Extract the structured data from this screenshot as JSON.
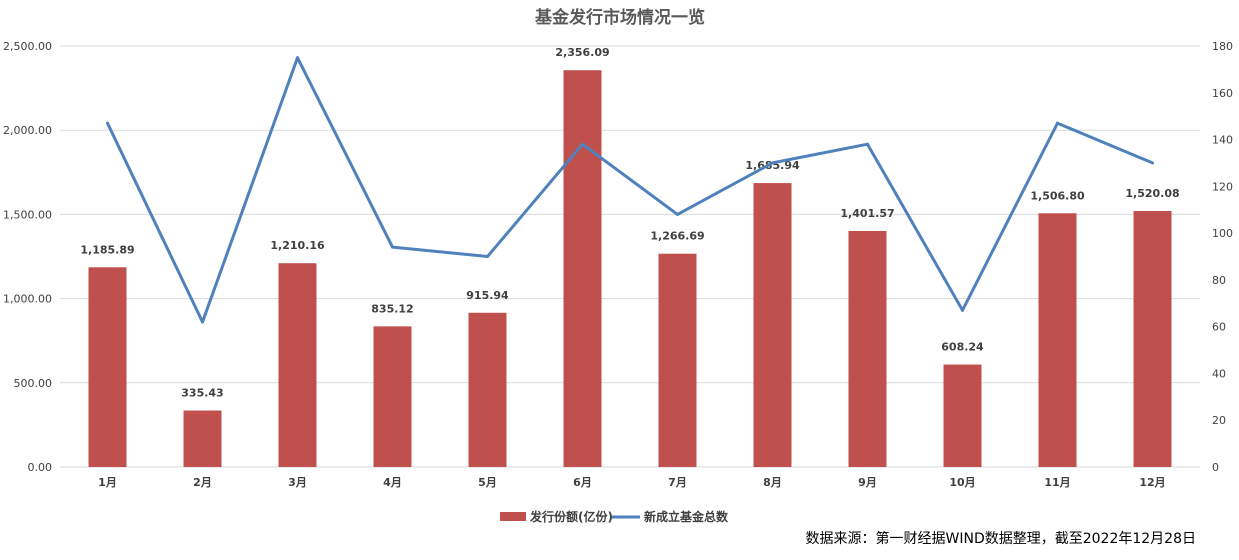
{
  "chart_data": {
    "type": "bar",
    "title": "基金发行市场情况一览",
    "categories": [
      "1月",
      "2月",
      "3月",
      "4月",
      "5月",
      "6月",
      "7月",
      "8月",
      "9月",
      "10月",
      "11月",
      "12月"
    ],
    "series": [
      {
        "name": "发行份额(亿份)",
        "type": "bar",
        "axis": "left",
        "color": "#c0504d",
        "values": [
          1185.89,
          335.43,
          1210.16,
          835.12,
          915.94,
          2356.09,
          1266.69,
          1685.94,
          1401.57,
          608.24,
          1506.8,
          1520.08
        ],
        "labels": [
          "1,185.89",
          "335.43",
          "1,210.16",
          "835.12",
          "915.94",
          "2,356.09",
          "1,266.69",
          "1,685.94",
          "1,401.57",
          "608.24",
          "1,506.80",
          "1,520.08"
        ]
      },
      {
        "name": "新成立基金总数",
        "type": "line",
        "axis": "right",
        "color": "#4f81bd",
        "values": [
          147,
          62,
          175,
          94,
          90,
          138,
          108,
          130,
          138,
          67,
          147,
          130
        ]
      }
    ],
    "y_left": {
      "range": [
        0,
        2500
      ],
      "ticks": [
        0,
        500,
        1000,
        1500,
        2000,
        2500
      ],
      "tick_labels": [
        "0.00",
        "500.00",
        "1,000.00",
        "1,500.00",
        "2,000.00",
        "2,500.00"
      ]
    },
    "y_right": {
      "range": [
        0,
        180
      ],
      "ticks": [
        0,
        20,
        40,
        60,
        80,
        100,
        120,
        140,
        160,
        180
      ],
      "tick_labels": [
        "0",
        "20",
        "40",
        "60",
        "80",
        "100",
        "120",
        "140",
        "160",
        "180"
      ]
    },
    "grid": "horizontal",
    "legend": "bottom-center"
  },
  "source_note": "数据来源：第一财经据WIND数据整理，截至2022年12月28日"
}
